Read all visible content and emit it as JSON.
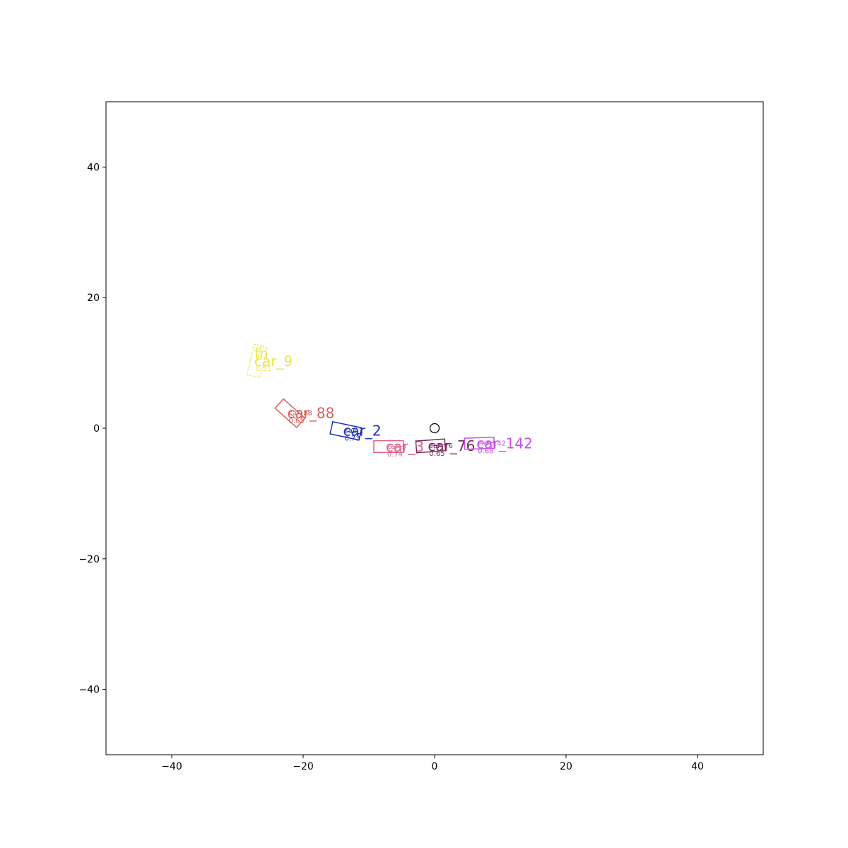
{
  "chart_data": {
    "type": "scatter",
    "title": "",
    "xlabel": "",
    "ylabel": "",
    "xlim": [
      -50,
      50
    ],
    "ylim": [
      -50,
      50
    ],
    "grid": false,
    "xticks": [
      "−40",
      "−20",
      "0",
      "20",
      "40"
    ],
    "yticks": [
      "40",
      "20",
      "0",
      "−20",
      "−40"
    ],
    "xtick_values": [
      -40,
      -20,
      0,
      20,
      40
    ],
    "ytick_values": [
      40,
      20,
      0,
      -20,
      -40
    ],
    "ego": {
      "x": 0,
      "y": 0,
      "marker": "circle"
    },
    "boxes": [
      {
        "label": "car_9",
        "extra_label": "fn",
        "id_text": "",
        "score": "0.51",
        "color": "#e8e84f",
        "dashed": true,
        "center": [
          -27.0,
          10.3
        ],
        "length": 4.8,
        "width": 2.0,
        "heading_deg": 76
      },
      {
        "label": "car_88",
        "extra_label": "",
        "id_text": "car_88",
        "score": "0.65",
        "color": "#d9625c",
        "dashed": false,
        "center": [
          -22.0,
          2.3
        ],
        "length": 4.4,
        "width": 1.9,
        "heading_deg": -42
      },
      {
        "label": "car_2",
        "extra_label": "",
        "id_text": "car_2",
        "score": "0.73",
        "color": "#2230b8",
        "dashed": false,
        "center": [
          -13.5,
          -0.4
        ],
        "length": 4.5,
        "width": 1.9,
        "heading_deg": -12
      },
      {
        "label": "car_3",
        "extra_label": "",
        "id_text": "car_3",
        "score": "0.74",
        "color": "#e0608e",
        "dashed": false,
        "center": [
          -7.0,
          -2.8
        ],
        "length": 4.5,
        "width": 1.8,
        "heading_deg": 0
      },
      {
        "label": "car_76",
        "extra_label": "",
        "id_text": "car_76",
        "score": "0.65",
        "color": "#7a2a5e",
        "dashed": false,
        "center": [
          -0.6,
          -2.7
        ],
        "length": 4.4,
        "width": 1.8,
        "heading_deg": 4
      },
      {
        "label": "car_142",
        "extra_label": "",
        "id_text": "car_142",
        "score": "0.68",
        "color": "#c850e8",
        "dashed": false,
        "center": [
          6.8,
          -2.3
        ],
        "length": 4.5,
        "width": 1.7,
        "heading_deg": 2
      }
    ]
  }
}
